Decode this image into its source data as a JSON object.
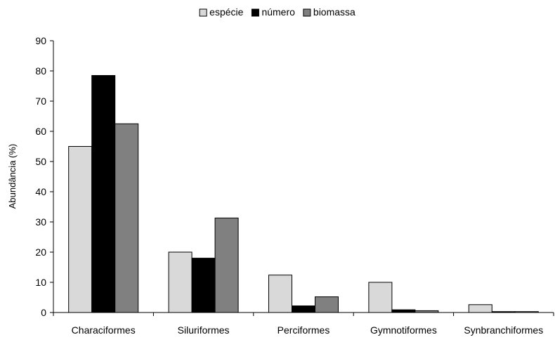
{
  "chart_data": {
    "type": "bar",
    "title": "",
    "xlabel": "",
    "ylabel": "Abundância (%)",
    "ylim": [
      0,
      90
    ],
    "yticks": [
      0,
      10,
      20,
      30,
      40,
      50,
      60,
      70,
      80,
      90
    ],
    "grid": false,
    "legend_position": "top-center",
    "categories": [
      "Characiformes",
      "Siluriformes",
      "Perciformes",
      "Gymnotiformes",
      "Synbranchiformes"
    ],
    "series": [
      {
        "name": "espécie",
        "color": "#d9d9d9",
        "values": [
          55,
          20,
          12.4,
          10,
          2.6
        ]
      },
      {
        "name": "número",
        "color": "#000000",
        "values": [
          78.5,
          18,
          2.2,
          0.9,
          0.3
        ]
      },
      {
        "name": "biomassa",
        "color": "#808080",
        "values": [
          62.5,
          31.3,
          5.2,
          0.6,
          0.3
        ]
      }
    ]
  }
}
